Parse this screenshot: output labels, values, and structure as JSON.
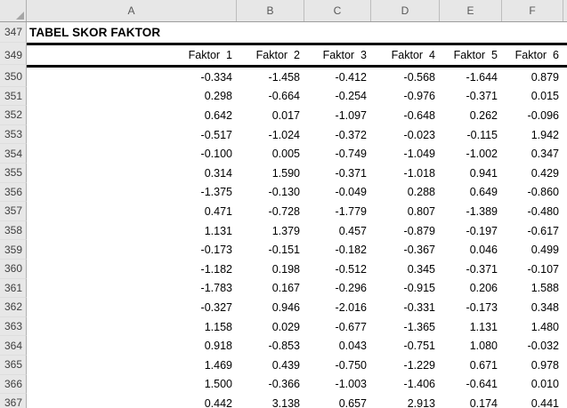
{
  "sheet": {
    "column_headers": [
      "A",
      "B",
      "C",
      "D",
      "E",
      "F"
    ],
    "title_row": {
      "row": "347",
      "label": "TABEL SKOR FAKTOR"
    },
    "header_row": {
      "row": "349",
      "labels": [
        "Faktor  1",
        "Faktor  2",
        "Faktor  3",
        "Faktor  4",
        "Faktor  5",
        "Faktor  6"
      ]
    },
    "data_rows": [
      {
        "row": "350",
        "values": [
          "-0.334",
          "-1.458",
          "-0.412",
          "-0.568",
          "-1.644",
          "0.879"
        ]
      },
      {
        "row": "351",
        "values": [
          "0.298",
          "-0.664",
          "-0.254",
          "-0.976",
          "-0.371",
          "0.015"
        ]
      },
      {
        "row": "352",
        "values": [
          "0.642",
          "0.017",
          "-1.097",
          "-0.648",
          "0.262",
          "-0.096"
        ]
      },
      {
        "row": "353",
        "values": [
          "-0.517",
          "-1.024",
          "-0.372",
          "-0.023",
          "-0.115",
          "1.942"
        ]
      },
      {
        "row": "354",
        "values": [
          "-0.100",
          "0.005",
          "-0.749",
          "-1.049",
          "-1.002",
          "0.347"
        ]
      },
      {
        "row": "355",
        "values": [
          "0.314",
          "1.590",
          "-0.371",
          "-1.018",
          "0.941",
          "0.429"
        ]
      },
      {
        "row": "356",
        "values": [
          "-1.375",
          "-0.130",
          "-0.049",
          "0.288",
          "0.649",
          "-0.860"
        ]
      },
      {
        "row": "357",
        "values": [
          "0.471",
          "-0.728",
          "-1.779",
          "0.807",
          "-1.389",
          "-0.480"
        ]
      },
      {
        "row": "358",
        "values": [
          "1.131",
          "1.379",
          "0.457",
          "-0.879",
          "-0.197",
          "-0.617"
        ]
      },
      {
        "row": "359",
        "values": [
          "-0.173",
          "-0.151",
          "-0.182",
          "-0.367",
          "0.046",
          "0.499"
        ]
      },
      {
        "row": "360",
        "values": [
          "-1.182",
          "0.198",
          "-0.512",
          "0.345",
          "-0.371",
          "-0.107"
        ]
      },
      {
        "row": "361",
        "values": [
          "-1.783",
          "0.167",
          "-0.296",
          "-0.915",
          "0.206",
          "1.588"
        ]
      },
      {
        "row": "362",
        "values": [
          "-0.327",
          "0.946",
          "-2.016",
          "-0.331",
          "-0.173",
          "0.348"
        ]
      },
      {
        "row": "363",
        "values": [
          "1.158",
          "0.029",
          "-0.677",
          "-1.365",
          "1.131",
          "1.480"
        ]
      },
      {
        "row": "364",
        "values": [
          "0.918",
          "-0.853",
          "0.043",
          "-0.751",
          "1.080",
          "-0.032"
        ]
      },
      {
        "row": "365",
        "values": [
          "1.469",
          "0.439",
          "-0.750",
          "-1.229",
          "0.671",
          "0.978"
        ]
      },
      {
        "row": "366",
        "values": [
          "1.500",
          "-0.366",
          "-1.003",
          "-1.406",
          "-0.641",
          "0.010"
        ]
      },
      {
        "row": "367",
        "values": [
          "0.442",
          "3.138",
          "0.657",
          "2.913",
          "0.174",
          "0.441"
        ]
      }
    ],
    "colors": {
      "header_bg": "#e7e7e7",
      "header_text": "#585858",
      "row_number_text": "#404040",
      "grid_border": "#b0b0b0",
      "thick_border": "#000000",
      "cell_text": "#000000"
    }
  }
}
